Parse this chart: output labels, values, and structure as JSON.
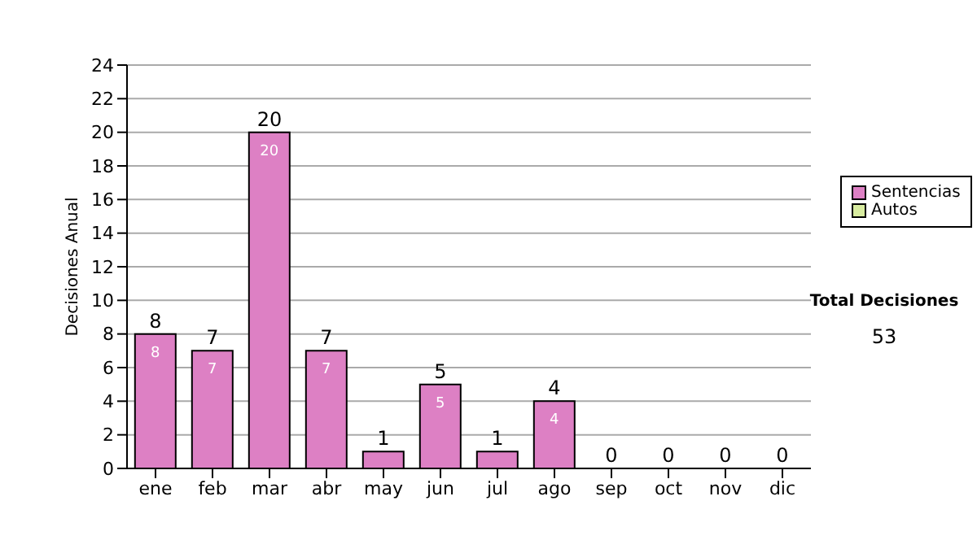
{
  "chart_data": {
    "type": "bar",
    "stacked": true,
    "ylabel": "Decisiones Anual",
    "categories": [
      "ene",
      "feb",
      "mar",
      "abr",
      "may",
      "jun",
      "jul",
      "ago",
      "sep",
      "oct",
      "nov",
      "dic"
    ],
    "series": [
      {
        "name": "Sentencias",
        "color": "#dd80c4",
        "values": [
          8,
          7,
          20,
          7,
          1,
          5,
          1,
          4,
          0,
          0,
          0,
          0
        ],
        "value_labels": [
          "8",
          "7",
          "20",
          "7",
          null,
          "5",
          null,
          "4",
          null,
          null,
          null,
          null
        ]
      },
      {
        "name": "Autos",
        "color": "#d8eca0",
        "values": [
          0,
          0,
          0,
          0,
          0,
          0,
          0,
          0,
          0,
          0,
          0,
          0
        ]
      }
    ],
    "totals": [
      "8",
      "7",
      "20",
      "7",
      "1",
      "5",
      "1",
      "4",
      "0",
      "0",
      "0",
      "0"
    ],
    "ylim": [
      0,
      24
    ],
    "yticks": [
      0,
      2,
      4,
      6,
      8,
      10,
      12,
      14,
      16,
      18,
      20,
      22,
      24
    ],
    "grid": "y",
    "legend": "right",
    "annotations": [
      "Total Decisiones",
      "53"
    ]
  }
}
